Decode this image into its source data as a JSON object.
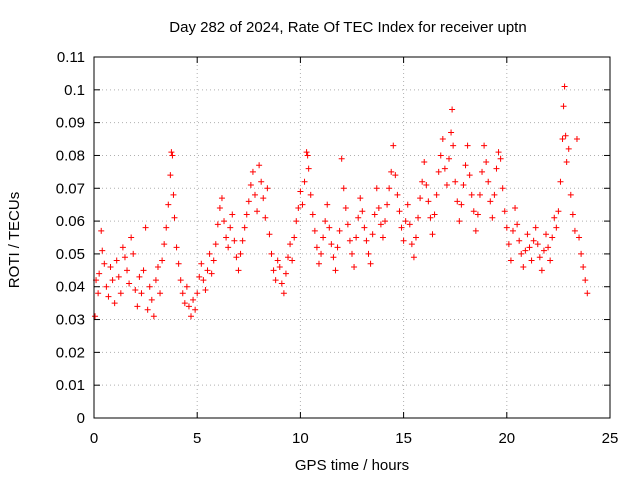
{
  "chart_data": {
    "type": "scatter",
    "title": "Day 282 of 2024, Rate Of TEC Index for receiver uptn",
    "xlabel": "GPS time / hours",
    "ylabel": "ROTI / TECUs",
    "xlim": [
      0,
      25
    ],
    "ylim": [
      0,
      0.11
    ],
    "x_ticks": [
      "0",
      "5",
      "10",
      "15",
      "20",
      "25"
    ],
    "y_ticks": [
      "0",
      "0.01",
      "0.02",
      "0.03",
      "0.04",
      "0.05",
      "0.06",
      "0.07",
      "0.08",
      "0.09",
      "0.1",
      "0.11"
    ],
    "grid": true,
    "marker": "+",
    "color": "#ff0000",
    "series": [
      {
        "points": [
          [
            0.05,
            0.031
          ],
          [
            0.1,
            0.042
          ],
          [
            0.2,
            0.038
          ],
          [
            0.25,
            0.044
          ],
          [
            0.35,
            0.057
          ],
          [
            0.4,
            0.051
          ],
          [
            0.5,
            0.047
          ],
          [
            0.6,
            0.04
          ],
          [
            0.7,
            0.037
          ],
          [
            0.8,
            0.046
          ],
          [
            0.9,
            0.042
          ],
          [
            1.0,
            0.035
          ],
          [
            1.1,
            0.048
          ],
          [
            1.2,
            0.043
          ],
          [
            1.3,
            0.038
          ],
          [
            1.4,
            0.052
          ],
          [
            1.5,
            0.049
          ],
          [
            1.6,
            0.045
          ],
          [
            1.7,
            0.041
          ],
          [
            1.8,
            0.055
          ],
          [
            1.9,
            0.05
          ],
          [
            2.0,
            0.039
          ],
          [
            2.1,
            0.034
          ],
          [
            2.2,
            0.043
          ],
          [
            2.3,
            0.038
          ],
          [
            2.4,
            0.045
          ],
          [
            2.5,
            0.058
          ],
          [
            2.6,
            0.033
          ],
          [
            2.7,
            0.04
          ],
          [
            2.8,
            0.036
          ],
          [
            2.9,
            0.031
          ],
          [
            3.0,
            0.042
          ],
          [
            3.1,
            0.046
          ],
          [
            3.2,
            0.038
          ],
          [
            3.3,
            0.048
          ],
          [
            3.4,
            0.053
          ],
          [
            3.5,
            0.058
          ],
          [
            3.6,
            0.065
          ],
          [
            3.7,
            0.074
          ],
          [
            3.75,
            0.081
          ],
          [
            3.8,
            0.08
          ],
          [
            3.85,
            0.068
          ],
          [
            3.9,
            0.061
          ],
          [
            4.0,
            0.052
          ],
          [
            4.1,
            0.047
          ],
          [
            4.2,
            0.042
          ],
          [
            4.3,
            0.038
          ],
          [
            4.4,
            0.035
          ],
          [
            4.5,
            0.04
          ],
          [
            4.6,
            0.034
          ],
          [
            4.7,
            0.031
          ],
          [
            4.8,
            0.036
          ],
          [
            4.9,
            0.033
          ],
          [
            5.0,
            0.038
          ],
          [
            5.1,
            0.043
          ],
          [
            5.2,
            0.047
          ],
          [
            5.3,
            0.042
          ],
          [
            5.4,
            0.039
          ],
          [
            5.5,
            0.045
          ],
          [
            5.6,
            0.05
          ],
          [
            5.7,
            0.044
          ],
          [
            5.8,
            0.048
          ],
          [
            5.9,
            0.053
          ],
          [
            6.0,
            0.059
          ],
          [
            6.1,
            0.064
          ],
          [
            6.2,
            0.067
          ],
          [
            6.3,
            0.06
          ],
          [
            6.4,
            0.055
          ],
          [
            6.5,
            0.052
          ],
          [
            6.6,
            0.058
          ],
          [
            6.7,
            0.062
          ],
          [
            6.8,
            0.054
          ],
          [
            6.9,
            0.049
          ],
          [
            7.0,
            0.045
          ],
          [
            7.1,
            0.05
          ],
          [
            7.2,
            0.054
          ],
          [
            7.3,
            0.058
          ],
          [
            7.4,
            0.062
          ],
          [
            7.5,
            0.066
          ],
          [
            7.6,
            0.071
          ],
          [
            7.7,
            0.075
          ],
          [
            7.8,
            0.068
          ],
          [
            7.9,
            0.063
          ],
          [
            8.0,
            0.077
          ],
          [
            8.1,
            0.072
          ],
          [
            8.2,
            0.067
          ],
          [
            8.3,
            0.061
          ],
          [
            8.4,
            0.07
          ],
          [
            8.5,
            0.056
          ],
          [
            8.6,
            0.05
          ],
          [
            8.7,
            0.045
          ],
          [
            8.8,
            0.042
          ],
          [
            8.9,
            0.048
          ],
          [
            9.0,
            0.046
          ],
          [
            9.1,
            0.041
          ],
          [
            9.2,
            0.038
          ],
          [
            9.3,
            0.044
          ],
          [
            9.4,
            0.049
          ],
          [
            9.5,
            0.053
          ],
          [
            9.6,
            0.048
          ],
          [
            9.7,
            0.055
          ],
          [
            9.8,
            0.06
          ],
          [
            9.9,
            0.064
          ],
          [
            10.0,
            0.069
          ],
          [
            10.1,
            0.065
          ],
          [
            10.2,
            0.072
          ],
          [
            10.3,
            0.081
          ],
          [
            10.35,
            0.08
          ],
          [
            10.4,
            0.076
          ],
          [
            10.5,
            0.068
          ],
          [
            10.6,
            0.062
          ],
          [
            10.7,
            0.057
          ],
          [
            10.8,
            0.052
          ],
          [
            10.9,
            0.047
          ],
          [
            11.0,
            0.05
          ],
          [
            11.1,
            0.055
          ],
          [
            11.2,
            0.06
          ],
          [
            11.3,
            0.065
          ],
          [
            11.4,
            0.058
          ],
          [
            11.5,
            0.053
          ],
          [
            11.6,
            0.049
          ],
          [
            11.7,
            0.045
          ],
          [
            11.8,
            0.052
          ],
          [
            11.9,
            0.057
          ],
          [
            12.0,
            0.079
          ],
          [
            12.1,
            0.07
          ],
          [
            12.2,
            0.064
          ],
          [
            12.3,
            0.059
          ],
          [
            12.4,
            0.054
          ],
          [
            12.5,
            0.05
          ],
          [
            12.6,
            0.046
          ],
          [
            12.7,
            0.055
          ],
          [
            12.8,
            0.061
          ],
          [
            12.9,
            0.067
          ],
          [
            13.0,
            0.063
          ],
          [
            13.1,
            0.058
          ],
          [
            13.2,
            0.054
          ],
          [
            13.3,
            0.05
          ],
          [
            13.4,
            0.047
          ],
          [
            13.5,
            0.056
          ],
          [
            13.6,
            0.062
          ],
          [
            13.7,
            0.07
          ],
          [
            13.8,
            0.064
          ],
          [
            13.9,
            0.059
          ],
          [
            14.0,
            0.055
          ],
          [
            14.1,
            0.06
          ],
          [
            14.2,
            0.065
          ],
          [
            14.3,
            0.07
          ],
          [
            14.4,
            0.075
          ],
          [
            14.5,
            0.083
          ],
          [
            14.6,
            0.074
          ],
          [
            14.7,
            0.068
          ],
          [
            14.8,
            0.063
          ],
          [
            14.9,
            0.058
          ],
          [
            15.0,
            0.054
          ],
          [
            15.1,
            0.06
          ],
          [
            15.2,
            0.065
          ],
          [
            15.3,
            0.059
          ],
          [
            15.4,
            0.053
          ],
          [
            15.5,
            0.049
          ],
          [
            15.6,
            0.055
          ],
          [
            15.7,
            0.061
          ],
          [
            15.8,
            0.067
          ],
          [
            15.9,
            0.072
          ],
          [
            16.0,
            0.078
          ],
          [
            16.1,
            0.071
          ],
          [
            16.2,
            0.066
          ],
          [
            16.3,
            0.061
          ],
          [
            16.4,
            0.056
          ],
          [
            16.5,
            0.062
          ],
          [
            16.6,
            0.068
          ],
          [
            16.7,
            0.075
          ],
          [
            16.8,
            0.08
          ],
          [
            16.9,
            0.085
          ],
          [
            17.0,
            0.076
          ],
          [
            17.1,
            0.071
          ],
          [
            17.2,
            0.079
          ],
          [
            17.3,
            0.087
          ],
          [
            17.35,
            0.094
          ],
          [
            17.4,
            0.083
          ],
          [
            17.5,
            0.072
          ],
          [
            17.6,
            0.066
          ],
          [
            17.7,
            0.06
          ],
          [
            17.8,
            0.065
          ],
          [
            17.9,
            0.071
          ],
          [
            18.0,
            0.077
          ],
          [
            18.1,
            0.083
          ],
          [
            18.2,
            0.074
          ],
          [
            18.3,
            0.068
          ],
          [
            18.4,
            0.063
          ],
          [
            18.5,
            0.057
          ],
          [
            18.6,
            0.062
          ],
          [
            18.7,
            0.068
          ],
          [
            18.8,
            0.075
          ],
          [
            18.9,
            0.083
          ],
          [
            19.0,
            0.078
          ],
          [
            19.1,
            0.072
          ],
          [
            19.2,
            0.066
          ],
          [
            19.3,
            0.061
          ],
          [
            19.4,
            0.068
          ],
          [
            19.5,
            0.076
          ],
          [
            19.6,
            0.081
          ],
          [
            19.7,
            0.079
          ],
          [
            19.8,
            0.07
          ],
          [
            19.9,
            0.063
          ],
          [
            20.0,
            0.058
          ],
          [
            20.1,
            0.053
          ],
          [
            20.2,
            0.048
          ],
          [
            20.3,
            0.057
          ],
          [
            20.4,
            0.064
          ],
          [
            20.5,
            0.059
          ],
          [
            20.6,
            0.054
          ],
          [
            20.7,
            0.05
          ],
          [
            20.8,
            0.046
          ],
          [
            20.9,
            0.051
          ],
          [
            21.0,
            0.056
          ],
          [
            21.1,
            0.052
          ],
          [
            21.2,
            0.048
          ],
          [
            21.3,
            0.054
          ],
          [
            21.4,
            0.058
          ],
          [
            21.5,
            0.053
          ],
          [
            21.6,
            0.049
          ],
          [
            21.7,
            0.045
          ],
          [
            21.8,
            0.051
          ],
          [
            21.9,
            0.056
          ],
          [
            22.0,
            0.052
          ],
          [
            22.1,
            0.048
          ],
          [
            22.2,
            0.055
          ],
          [
            22.3,
            0.061
          ],
          [
            22.4,
            0.058
          ],
          [
            22.5,
            0.063
          ],
          [
            22.6,
            0.072
          ],
          [
            22.7,
            0.085
          ],
          [
            22.75,
            0.095
          ],
          [
            22.8,
            0.101
          ],
          [
            22.85,
            0.086
          ],
          [
            22.9,
            0.078
          ],
          [
            23.0,
            0.082
          ],
          [
            23.1,
            0.068
          ],
          [
            23.2,
            0.062
          ],
          [
            23.3,
            0.057
          ],
          [
            23.4,
            0.085
          ],
          [
            23.5,
            0.055
          ],
          [
            23.6,
            0.05
          ],
          [
            23.7,
            0.046
          ],
          [
            23.8,
            0.042
          ],
          [
            23.9,
            0.038
          ]
        ]
      }
    ]
  }
}
